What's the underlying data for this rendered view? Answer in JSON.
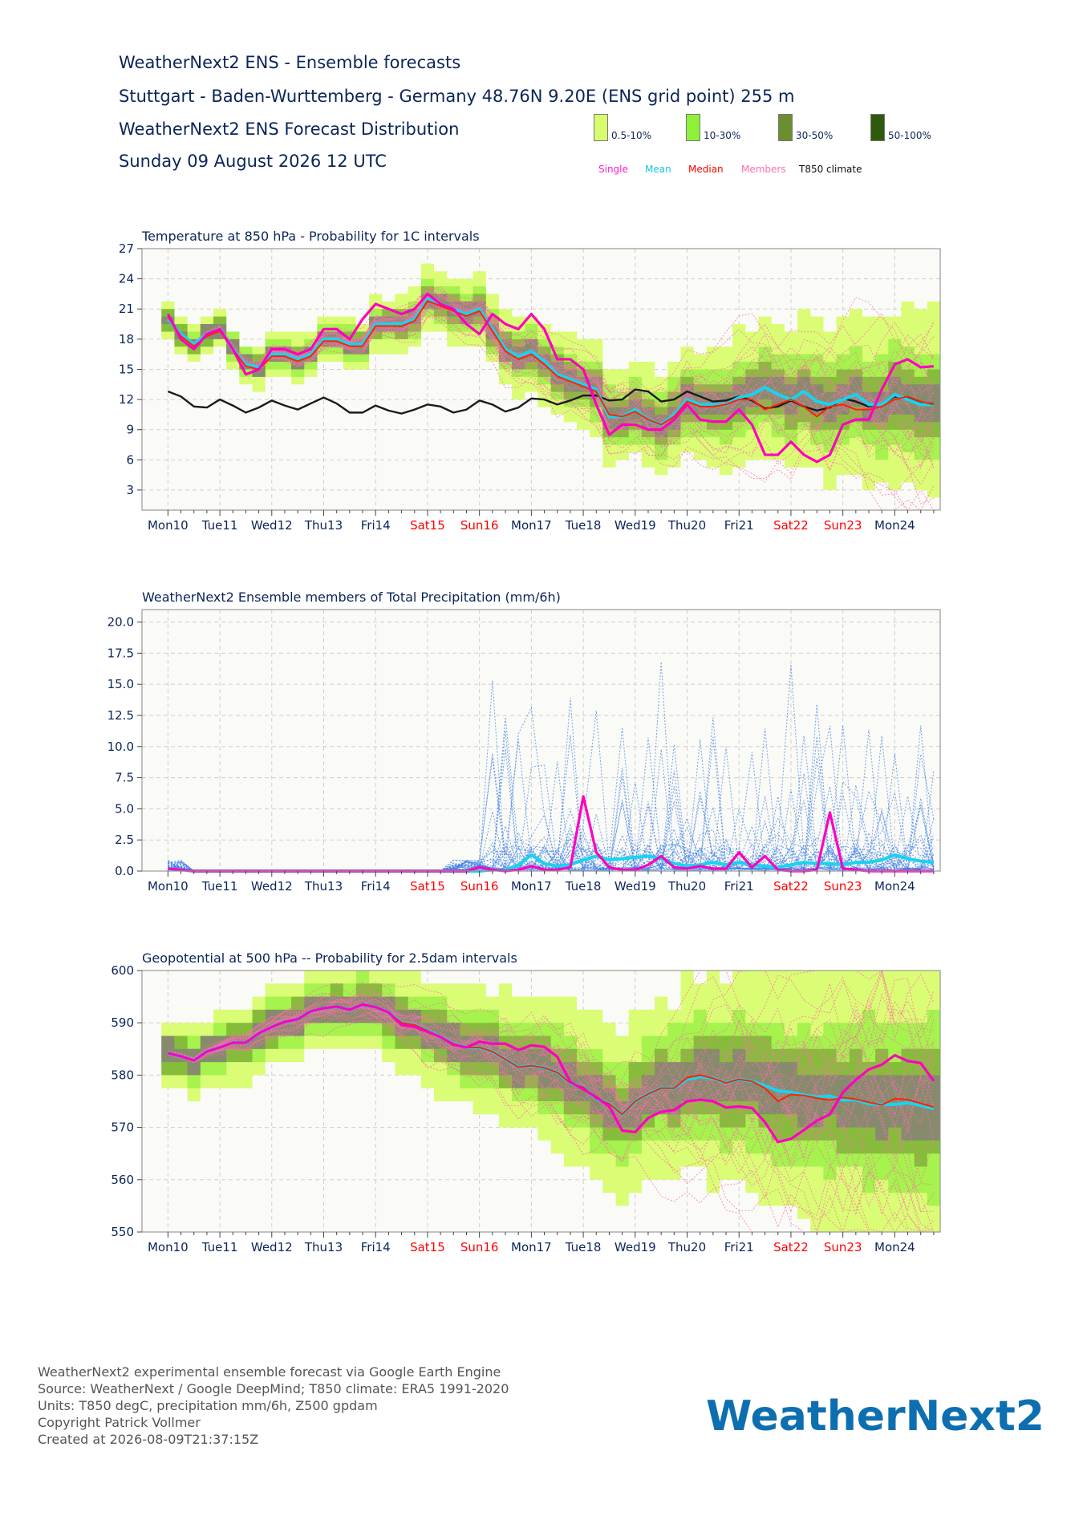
{
  "header": {
    "line1": "WeatherNext2 ENS - Ensemble forecasts",
    "line2": "Stuttgart - Baden-Wurttemberg - Germany 48.76N 9.20E (ENS grid point) 255 m",
    "line3": "WeatherNext2 ENS Forecast Distribution",
    "line4": "Sunday 09 August 2026 12 UTC"
  },
  "legend": {
    "bands": [
      {
        "label": "0.5-10%",
        "color": "#d9fc6e"
      },
      {
        "label": "10-30%",
        "color": "#8ff03a"
      },
      {
        "label": "30-50%",
        "color": "#6b8f2e"
      },
      {
        "label": "50-100%",
        "color": "#2f5a0d"
      }
    ],
    "lines": [
      {
        "label": "Single",
        "color": "#ff1fcf"
      },
      {
        "label": "Mean",
        "color": "#12c6e8"
      },
      {
        "label": "Median",
        "color": "#ff0000"
      },
      {
        "label": "Members",
        "color": "#ff6fb0"
      },
      {
        "label": "T850 climate",
        "color": "#111111"
      }
    ]
  },
  "colors": {
    "single": "#ff00bf",
    "mean": "#19d3ee",
    "median": "#ff2200",
    "members_t850": "#ff6fa8",
    "members_precip": "#3b7ee6",
    "climate": "#1a1a1a",
    "spread50": "#8a7a80",
    "weekday_text": "#0b2559",
    "weekend_text": "#ff0000"
  },
  "chart_data": [
    {
      "type": "line",
      "title": "Temperature at 850 hPa - Probability for 1C intervals",
      "xlabel": "",
      "ylabel": "",
      "x_ticks": [
        "Mon10",
        "Tue11",
        "Wed12",
        "Thu13",
        "Fri14",
        "Sat15",
        "Sun16",
        "Mon17",
        "Tue18",
        "Wed19",
        "Thu20",
        "Fri21",
        "Sat22",
        "Sun23",
        "Mon24"
      ],
      "weekend_ticks": [
        "Sat15",
        "Sun16",
        "Sat22",
        "Sun23"
      ],
      "x_step_hours": 6,
      "ylim": [
        1,
        27
      ],
      "yticks": [
        3,
        6,
        9,
        12,
        15,
        18,
        21,
        24,
        27
      ],
      "grid": true,
      "legend": "none",
      "series": [
        {
          "name": "Single",
          "values": [
            20.5,
            18,
            17,
            18.5,
            19,
            17,
            14.5,
            15,
            17,
            17,
            16.5,
            17,
            19,
            19,
            18,
            20,
            21.5,
            21,
            20.5,
            21,
            22.5,
            21.5,
            21,
            19.5,
            18.5,
            20.5,
            19.5,
            19,
            20.5,
            19,
            16,
            16,
            15,
            11.5,
            8.5,
            9.5,
            9.5,
            9,
            9,
            10,
            11.5,
            10,
            9.8,
            9.8,
            11,
            9.5,
            6.5,
            6.5,
            7.8,
            6.5,
            5.8,
            6.5,
            9.5,
            10,
            10,
            13,
            15.5,
            16,
            15.2,
            15.3
          ]
        },
        {
          "name": "Mean",
          "values": [
            20,
            18.5,
            17.5,
            18.5,
            19,
            17,
            15.5,
            15.2,
            16.5,
            16.5,
            16,
            16.5,
            18,
            18,
            17.5,
            17.5,
            19.5,
            19.5,
            19.5,
            20,
            22,
            21.5,
            21,
            20.5,
            21,
            19,
            17,
            16.3,
            16.8,
            15.8,
            14.5,
            14,
            13.5,
            13,
            10.3,
            10.3,
            11,
            10,
            9.5,
            10.5,
            12,
            11.5,
            11.5,
            11.5,
            12.2,
            12.5,
            13.2,
            12.5,
            12,
            12.8,
            11.8,
            11.5,
            12,
            12.5,
            11.5,
            11.5,
            12.5,
            12,
            11.5,
            11.5
          ]
        },
        {
          "name": "Median",
          "values": [
            20.2,
            18.3,
            17.3,
            18.3,
            18.8,
            17,
            15.3,
            15,
            16.3,
            16.3,
            15.8,
            16.3,
            17.8,
            17.8,
            17.3,
            17.3,
            19.3,
            19.3,
            19.3,
            19.8,
            21.8,
            21.3,
            20.8,
            20.3,
            20.8,
            18.8,
            16.8,
            16,
            16.5,
            15.5,
            14.3,
            13.8,
            13.3,
            12.8,
            10.5,
            10.3,
            10.8,
            10,
            9.5,
            10.3,
            11.8,
            11.3,
            11.3,
            11.5,
            12,
            12,
            11,
            11.5,
            12,
            11.3,
            10.3,
            11.3,
            11.5,
            11,
            11,
            11.3,
            12,
            12.3,
            11.8,
            11.5
          ]
        },
        {
          "name": "T850 climate",
          "values": [
            12.8,
            12.3,
            11.3,
            11.2,
            12,
            11.4,
            10.7,
            11.2,
            11.9,
            11.4,
            11,
            11.6,
            12.2,
            11.6,
            10.7,
            10.7,
            11.4,
            10.9,
            10.6,
            11,
            11.5,
            11.3,
            10.7,
            11,
            11.9,
            11.5,
            10.8,
            11.2,
            12.1,
            12,
            11.5,
            11.9,
            12.4,
            12.4,
            11.9,
            12,
            13,
            12.8,
            11.8,
            12,
            12.8,
            12.3,
            11.8,
            11.9,
            12.3,
            11.9,
            11.1,
            11.3,
            11.9,
            11.3,
            10.9,
            11.2,
            12.1,
            11.8,
            11.3,
            11.5,
            12.3,
            12.2,
            11.6,
            11.6
          ]
        }
      ]
    },
    {
      "type": "line",
      "title": "WeatherNext2 Ensemble members of Total Precipitation (mm/6h)",
      "xlabel": "",
      "ylabel": "",
      "x_ticks": [
        "Mon10",
        "Tue11",
        "Wed12",
        "Thu13",
        "Fri14",
        "Sat15",
        "Sun16",
        "Mon17",
        "Tue18",
        "Wed19",
        "Thu20",
        "Fri21",
        "Sat22",
        "Sun23",
        "Mon24"
      ],
      "weekend_ticks": [
        "Sat15",
        "Sun16",
        "Sat22",
        "Sun23"
      ],
      "x_step_hours": 6,
      "ylim": [
        0,
        21
      ],
      "yticks": [
        0.0,
        2.5,
        5.0,
        7.5,
        10.0,
        12.5,
        15.0,
        17.5,
        20.0
      ],
      "grid": true,
      "legend": "none",
      "series": [
        {
          "name": "Single",
          "values": [
            0.2,
            0.1,
            0,
            0,
            0,
            0,
            0,
            0,
            0,
            0,
            0,
            0,
            0,
            0,
            0,
            0,
            0,
            0,
            0,
            0,
            0,
            0,
            0,
            0,
            0.3,
            0.1,
            0,
            0.1,
            0.4,
            0.1,
            0.1,
            0.3,
            6,
            1.5,
            0.3,
            0.1,
            0.1,
            0.5,
            1.2,
            0.3,
            0.2,
            0.4,
            0.2,
            0.2,
            1.5,
            0.3,
            1.2,
            0.1,
            0,
            0,
            0.1,
            4.7,
            0.2,
            0.1,
            0,
            0,
            0,
            0,
            0,
            0
          ]
        },
        {
          "name": "Mean",
          "values": [
            0.2,
            0.1,
            0,
            0,
            0,
            0,
            0,
            0,
            0,
            0,
            0,
            0,
            0,
            0,
            0,
            0,
            0,
            0,
            0,
            0,
            0,
            0,
            0,
            0,
            0,
            0.1,
            0.1,
            0.5,
            1.3,
            0.6,
            0.4,
            0.5,
            0.9,
            1.2,
            0.9,
            1,
            1.1,
            1.2,
            1,
            0.6,
            0.4,
            0.5,
            0.7,
            0.5,
            0.7,
            0.5,
            0.4,
            0.3,
            0.5,
            0.7,
            0.6,
            0.6,
            0.5,
            0.7,
            0.7,
            0.9,
            1.3,
            1.0,
            0.8,
            0.7
          ]
        }
      ]
    },
    {
      "type": "line",
      "title": "Geopotential at 500 hPa -- Probability for 2.5dam intervals",
      "xlabel": "",
      "ylabel": "",
      "x_ticks": [
        "Mon10",
        "Tue11",
        "Wed12",
        "Thu13",
        "Fri14",
        "Sat15",
        "Sun16",
        "Mon17",
        "Tue18",
        "Wed19",
        "Thu20",
        "Fri21",
        "Sat22",
        "Sun23",
        "Mon24"
      ],
      "weekend_ticks": [
        "Sat15",
        "Sun16",
        "Sat22",
        "Sun23"
      ],
      "x_step_hours": 6,
      "ylim": [
        550,
        600
      ],
      "yticks": [
        550,
        560,
        570,
        580,
        590,
        600
      ],
      "grid": true,
      "legend": "none",
      "series": [
        {
          "name": "Single",
          "values": [
            584.2,
            583.6,
            582.8,
            584.5,
            585.3,
            586.2,
            586.2,
            588,
            589.2,
            590.2,
            590.7,
            592.2,
            592.8,
            593.1,
            592.5,
            593.5,
            593,
            592,
            589.6,
            589.2,
            588.3,
            587.3,
            585.8,
            585.3,
            586.4,
            586,
            586,
            584.8,
            585.7,
            585.4,
            583.5,
            578.7,
            577.3,
            575.8,
            574,
            569.4,
            569.1,
            571.8,
            573,
            573.3,
            575,
            575.3,
            575,
            573.8,
            574,
            573.7,
            571,
            567.2,
            567.8,
            569.5,
            571.3,
            572.5,
            576.7,
            579.1,
            581.1,
            582,
            583.8,
            582.7,
            582.3,
            578.9
          ]
        },
        {
          "name": "Mean",
          "values": [
            584.2,
            583.6,
            582.8,
            584.5,
            585.3,
            586.2,
            586.2,
            588,
            589.2,
            590.2,
            590.7,
            592.2,
            592.8,
            593.1,
            592.5,
            593.5,
            593,
            592,
            590,
            589.6,
            588.5,
            587.3,
            586,
            585.3,
            585.3,
            584.5,
            583,
            581.5,
            581.8,
            581.4,
            580.5,
            578.5,
            577.7,
            575.5,
            574.5,
            572.5,
            575,
            576.4,
            577.5,
            577.5,
            579.2,
            579.7,
            579.4,
            578.5,
            579.2,
            578.8,
            578,
            577,
            576.7,
            576.2,
            575.8,
            576,
            575.2,
            575.3,
            574.5,
            574.4,
            574.4,
            574.7,
            574.2,
            573.6
          ]
        },
        {
          "name": "Median",
          "values": [
            584.2,
            583.6,
            582.8,
            584.5,
            585.3,
            586.2,
            586.2,
            588,
            589.2,
            590.2,
            590.7,
            592.2,
            592.8,
            593.1,
            592.5,
            593.5,
            593,
            592,
            590,
            589.6,
            588.5,
            587.3,
            586,
            585.3,
            585.3,
            584.5,
            583,
            581.5,
            581.8,
            581.4,
            580.5,
            578.5,
            577.7,
            575.5,
            574.5,
            572.5,
            575,
            576.4,
            577.5,
            577.5,
            579.5,
            580,
            579.4,
            578.5,
            579.2,
            578.8,
            577.5,
            575,
            576.3,
            576.1,
            575.6,
            575.2,
            575.7,
            575.4,
            574.8,
            574.3,
            575.5,
            575.3,
            574.6,
            573.9
          ]
        }
      ]
    }
  ],
  "footer": {
    "lines": [
      "WeatherNext2 experimental ensemble forecast via Google Earth Engine",
      "Source: WeatherNext / Google DeepMind; T850 climate: ERA5 1991-2020",
      "Units: T850 degC, precipitation mm/6h, Z500 gpdam",
      "Copyright Patrick Vollmer",
      "Created at 2026-08-09T21:37:15Z"
    ],
    "brand": "WeatherNext2"
  }
}
